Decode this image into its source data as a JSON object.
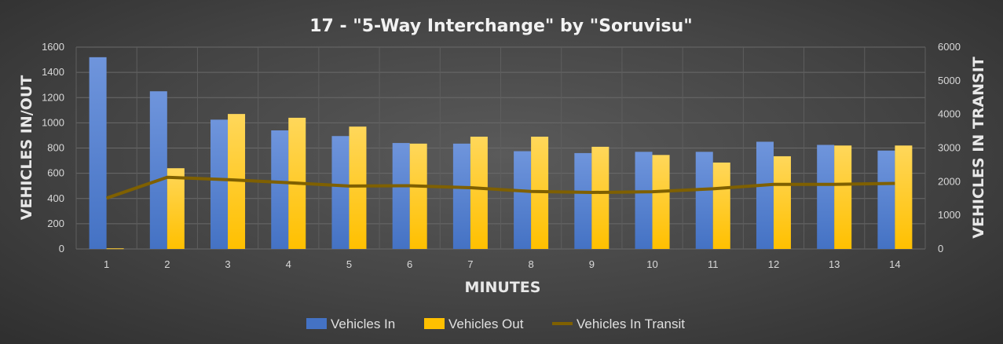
{
  "chart_data": {
    "type": "bar",
    "title": "17 - \"5-Way Interchange\" by \"Soruvisu\"",
    "xlabel": "MINUTES",
    "ylabel": "VEHICLES IN/OUT",
    "y2label": "VEHICLES IN TRANSIT",
    "categories": [
      "1",
      "2",
      "3",
      "4",
      "5",
      "6",
      "7",
      "8",
      "9",
      "10",
      "11",
      "12",
      "13",
      "14"
    ],
    "ylim": [
      0,
      1600
    ],
    "yticks": [
      0,
      200,
      400,
      600,
      800,
      1000,
      1200,
      1400,
      1600
    ],
    "y2lim": [
      0,
      6000
    ],
    "y2ticks": [
      0,
      1000,
      2000,
      3000,
      4000,
      5000,
      6000
    ],
    "grid": true,
    "legend": "bottom",
    "series": [
      {
        "name": "Vehicles In",
        "type": "bar",
        "axis": "left",
        "color": "#4472c4",
        "values": [
          1520,
          1250,
          1025,
          940,
          895,
          840,
          835,
          775,
          760,
          770,
          770,
          850,
          825,
          780
        ]
      },
      {
        "name": "Vehicles Out",
        "type": "bar",
        "axis": "left",
        "color": "#ffc000",
        "values": [
          5,
          640,
          1070,
          1040,
          970,
          835,
          890,
          890,
          810,
          745,
          685,
          735,
          820,
          820
        ]
      },
      {
        "name": "Vehicles In Transit",
        "type": "line",
        "axis": "right",
        "color": "#7f6000",
        "values": [
          1510,
          2130,
          2060,
          1970,
          1870,
          1880,
          1820,
          1710,
          1680,
          1700,
          1790,
          1920,
          1920,
          1950
        ]
      }
    ]
  }
}
